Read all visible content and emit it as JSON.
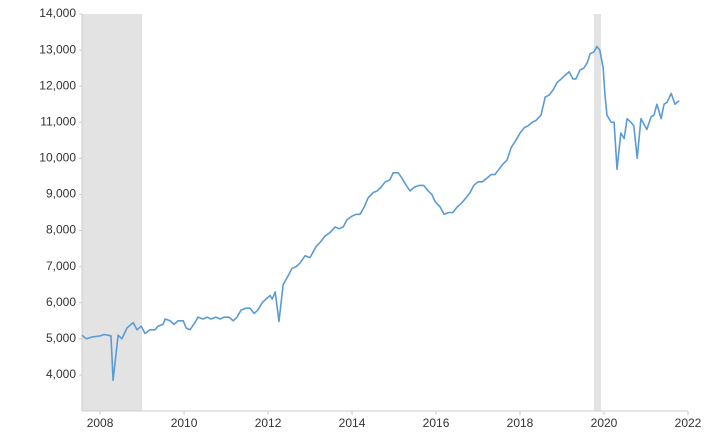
{
  "chart_data": {
    "type": "line",
    "x": [
      2007.57,
      2007.67,
      2007.81,
      2008.0,
      2008.1,
      2008.19,
      2008.26,
      2008.31,
      2008.43,
      2008.52,
      2008.64,
      2008.79,
      2008.88,
      2008.98,
      2009.07,
      2009.19,
      2009.31,
      2009.38,
      2009.5,
      2009.55,
      2009.67,
      2009.76,
      2009.86,
      2009.98,
      2010.05,
      2010.14,
      2010.26,
      2010.33,
      2010.45,
      2010.55,
      2010.64,
      2010.76,
      2010.86,
      2010.95,
      2011.07,
      2011.17,
      2011.26,
      2011.36,
      2011.48,
      2011.57,
      2011.67,
      2011.76,
      2011.86,
      2011.95,
      2012.05,
      2012.1,
      2012.17,
      2012.26,
      2012.36,
      2012.48,
      2012.57,
      2012.67,
      2012.76,
      2012.88,
      2013.0,
      2013.14,
      2013.26,
      2013.36,
      2013.48,
      2013.6,
      2013.69,
      2013.79,
      2013.88,
      2014.0,
      2014.1,
      2014.19,
      2014.29,
      2014.38,
      2014.5,
      2014.6,
      2014.69,
      2014.79,
      2014.9,
      2014.98,
      2015.1,
      2015.19,
      2015.29,
      2015.38,
      2015.48,
      2015.6,
      2015.71,
      2015.81,
      2015.9,
      2015.98,
      2016.1,
      2016.19,
      2016.31,
      2016.4,
      2016.5,
      2016.6,
      2016.71,
      2016.81,
      2016.9,
      2017.0,
      2017.1,
      2017.21,
      2017.31,
      2017.4,
      2017.5,
      2017.6,
      2017.69,
      2017.79,
      2017.9,
      2018.0,
      2018.1,
      2018.19,
      2018.29,
      2018.38,
      2018.5,
      2018.6,
      2018.69,
      2018.79,
      2018.88,
      2018.98,
      2019.07,
      2019.17,
      2019.26,
      2019.33,
      2019.43,
      2019.52,
      2019.6,
      2019.67,
      2019.76,
      2019.83,
      2019.9,
      2019.98,
      2020.02,
      2020.07,
      2020.17,
      2020.24,
      2020.31,
      2020.4,
      2020.48,
      2020.55,
      2020.64,
      2020.71,
      2020.79,
      2020.88,
      2020.95,
      2021.02,
      2021.12,
      2021.19,
      2021.26,
      2021.36,
      2021.43,
      2021.5,
      2021.6,
      2021.69,
      2021.79
    ],
    "series": [
      {
        "color": "#5b9bd5",
        "values": [
          5100,
          5000,
          5050,
          5080,
          5120,
          5100,
          5080,
          3850,
          5100,
          5000,
          5300,
          5450,
          5250,
          5350,
          5150,
          5250,
          5250,
          5350,
          5400,
          5550,
          5500,
          5400,
          5500,
          5500,
          5300,
          5250,
          5450,
          5600,
          5550,
          5600,
          5550,
          5600,
          5550,
          5600,
          5600,
          5500,
          5600,
          5800,
          5850,
          5850,
          5700,
          5800,
          6000,
          6100,
          6200,
          6100,
          6300,
          5480,
          6500,
          6750,
          6950,
          7000,
          7100,
          7300,
          7250,
          7550,
          7700,
          7850,
          7950,
          8100,
          8050,
          8100,
          8300,
          8400,
          8450,
          8450,
          8650,
          8900,
          9050,
          9100,
          9200,
          9350,
          9400,
          9600,
          9600,
          9450,
          9250,
          9100,
          9200,
          9250,
          9250,
          9100,
          9000,
          8800,
          8650,
          8450,
          8500,
          8500,
          8650,
          8750,
          8900,
          9050,
          9250,
          9350,
          9350,
          9450,
          9550,
          9550,
          9700,
          9850,
          9950,
          10300,
          10500,
          10700,
          10850,
          10900,
          11000,
          11050,
          11200,
          11700,
          11750,
          11900,
          12100,
          12200,
          12300,
          12400,
          12200,
          12200,
          12450,
          12500,
          12650,
          12900,
          12950,
          13100,
          13000,
          12500,
          11800,
          11200,
          11000,
          11000,
          9700,
          10700,
          10550,
          11100,
          11000,
          10900,
          10000,
          11100,
          10950,
          10800,
          11150,
          11200,
          11500,
          11100,
          11500,
          11550,
          11800,
          11500,
          11600
        ]
      }
    ],
    "xlim": [
      2007.57,
      2022
    ],
    "xticks": [
      2008,
      2010,
      2012,
      2014,
      2016,
      2018,
      2020,
      2022
    ],
    "ylim": [
      3000,
      14000
    ],
    "yticks": [
      {
        "value": 4000,
        "label": "4,000"
      },
      {
        "value": 5000,
        "label": "5,000"
      },
      {
        "value": 6000,
        "label": "6,000"
      },
      {
        "value": 7000,
        "label": "7,000"
      },
      {
        "value": 8000,
        "label": "8,000"
      },
      {
        "value": 9000,
        "label": "9,000"
      },
      {
        "value": 10000,
        "label": "10,000"
      },
      {
        "value": 11000,
        "label": "11,000"
      },
      {
        "value": 12000,
        "label": "12,000"
      },
      {
        "value": 13000,
        "label": "13,000"
      },
      {
        "value": 14000,
        "label": "14,000"
      }
    ],
    "shaded_ranges": [
      [
        2007.57,
        2009.0
      ],
      [
        2019.76,
        2019.93
      ]
    ],
    "shade_color": "#e3e3e3",
    "grid": false
  }
}
